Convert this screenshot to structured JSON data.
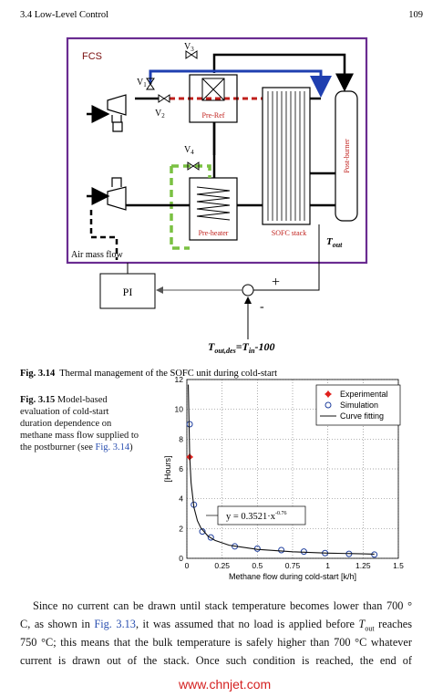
{
  "header": {
    "section": "3.4  Low-Level Control",
    "page": "109"
  },
  "figure_3_14": {
    "labels": {
      "fcs": "FCS",
      "v1": "V",
      "v1_sub": "1",
      "v2": "V",
      "v2_sub": "2",
      "v3": "V",
      "v3_sub": "3",
      "v4": "V",
      "v4_sub": "4",
      "pre_ref": "Pre-Ref",
      "pre_heater": "Pre-heater",
      "sofc_stack": "SOFC stack",
      "post_burner": "Post-burner",
      "t_out": "T",
      "t_out_sub": "out",
      "air_mass_flow": "Air mass flow",
      "pi": "PI",
      "plus": "+",
      "minus": "-",
      "setpoint_t": "T",
      "setpoint_sub1": "out,des",
      "setpoint_eq": "=T",
      "setpoint_sub2": "in",
      "setpoint_end": "-100"
    },
    "caption": {
      "label": "Fig. 3.14",
      "text": "Thermal management of the SOFC unit during cold-start"
    }
  },
  "chart_data": {
    "type": "line",
    "y_label": "[Hours]",
    "x_label": "Methane flow during cold-start [k/h]",
    "xlim": [
      0,
      1.5
    ],
    "xticks": [
      0,
      0.25,
      0.5,
      0.75,
      1,
      1.25,
      1.5
    ],
    "ylim": [
      0,
      12
    ],
    "yticks": [
      0,
      2,
      4,
      6,
      8,
      10,
      12
    ],
    "grid": true,
    "legend": "upper right",
    "annotation": {
      "text": "y = 0.3521·x",
      "exponent": "-0.76"
    },
    "series": [
      {
        "name": "Experimental",
        "color": "#e0201c",
        "marker": "plus",
        "x": [
          0.02
        ],
        "values": [
          6.8
        ]
      },
      {
        "name": "Simulation",
        "color": "#1f3f9e",
        "marker": "circle",
        "x": [
          0.02,
          0.05,
          0.11,
          0.17,
          0.34,
          0.5,
          0.67,
          0.83,
          0.98,
          1.15,
          1.33
        ],
        "values": [
          9,
          3.6,
          1.8,
          1.4,
          0.8,
          0.65,
          0.55,
          0.45,
          0.35,
          0.3,
          0.25
        ]
      },
      {
        "name": "Curve fitting",
        "color": "#111111",
        "marker": "none",
        "x": [
          0.01,
          0.02,
          0.03,
          0.05,
          0.075,
          0.1,
          0.15,
          0.2,
          0.3,
          0.5,
          0.75,
          1,
          1.25,
          1.33
        ],
        "values": [
          11.66,
          6.88,
          5.06,
          3.43,
          2.52,
          2.03,
          1.49,
          1.2,
          0.88,
          0.6,
          0.44,
          0.35,
          0.3,
          0.28
        ]
      }
    ]
  },
  "figure_3_15_caption": {
    "label": "Fig. 3.15",
    "text": "Model-based evaluation of cold-start duration dependence on methane mass flow supplied to the postburner (see ",
    "link": "Fig. 3.14",
    "end": ")"
  },
  "body": {
    "line0": "Since no current can be drawn until stack temperature becomes lower than 700 °",
    "line1_a": "C, as shown in ",
    "line1_link": "Fig. 3.13",
    "line1_b": ", it was assumed that no load is applied before ",
    "line1_t": "T",
    "line1_sub": "out",
    "line1_c": " reaches",
    "line2": "750 °C; this means that the bulk temperature is safely higher than 700 °C whatever",
    "line3": "current is drawn out of the stack. Once such condition is reached, the end of"
  },
  "watermark": "www.chnjet.com"
}
